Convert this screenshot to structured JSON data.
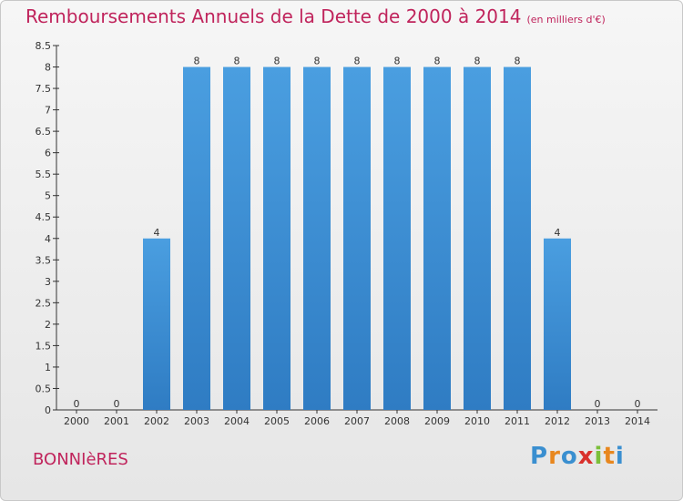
{
  "header": {
    "title": "Remboursements Annuels de la Dette de 2000 à 2014",
    "subtitle": "(en milliers d'€)"
  },
  "footer": {
    "commune": "BONNIèRES",
    "brand": "Proxiti",
    "brand_colors": [
      "#3a8fd0",
      "#e8871e",
      "#3a8fd0",
      "#d9302c",
      "#7bbf3a",
      "#e8871e",
      "#3a8fd0"
    ]
  },
  "chart_data": {
    "type": "bar",
    "categories": [
      "2000",
      "2001",
      "2002",
      "2003",
      "2004",
      "2005",
      "2006",
      "2007",
      "2008",
      "2009",
      "2010",
      "2011",
      "2012",
      "2013",
      "2014"
    ],
    "values": [
      0,
      0,
      4,
      8,
      8,
      8,
      8,
      8,
      8,
      8,
      8,
      8,
      4,
      0,
      0
    ],
    "y_tick_labels": [
      "0",
      "0.5",
      "1",
      "1.5",
      "2",
      "2.5",
      "3",
      "3.5",
      "4",
      "4.5",
      "5",
      "5.5",
      "6",
      "6.5",
      "7",
      "7.5",
      "8",
      "8.5"
    ],
    "ylim": [
      0,
      8.5
    ],
    "bar_color": "#4a9ee0",
    "bar_color_dark": "#2f7cc3",
    "grid": false
  }
}
